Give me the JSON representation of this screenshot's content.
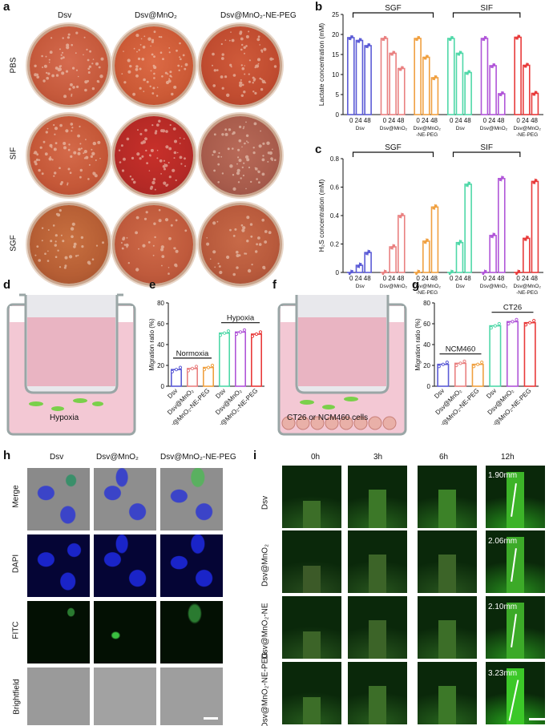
{
  "panels": {
    "a": "a",
    "b": "b",
    "c": "c",
    "d": "d",
    "e": "e",
    "f": "f",
    "g": "g",
    "h": "h",
    "i": "i"
  },
  "panel_a": {
    "col_headers": [
      "Dsv",
      "Dsv@MnO₂",
      "Dsv@MnO₂-NE-PEG"
    ],
    "row_headers": [
      "PBS",
      "SIF",
      "SGF"
    ]
  },
  "panel_b": {
    "group_labels": [
      "SGF",
      "SIF"
    ],
    "ylabel": "Lactate concentration (mM)",
    "tick_labels": [
      "0 24 48",
      "0 24 48",
      "0 24 48",
      "0 24 48",
      "0 24 48",
      "0 24 48"
    ],
    "xnames": [
      "Dsv",
      "Dsv@MnO₂",
      "Dsv@MnO₂\n-NE-PEG",
      "Dsv",
      "Dsv@MnO₂",
      "Dsv@MnO₂\n-NE-PEG"
    ]
  },
  "panel_c": {
    "group_labels": [
      "SGF",
      "SIF"
    ],
    "ylabel": "H₂S concentration (mM)"
  },
  "panel_d": {
    "label": "Hypoxia"
  },
  "panel_e": {
    "ylabel": "Migration ratio (%)",
    "groups": [
      "Normoxia",
      "Hypoxia"
    ],
    "xnames": [
      "Dsv",
      "Dsv@MnO₂",
      "Dsv@MnO₂-NE-PEG",
      "Dsv",
      "Dsv@MnO₂",
      "Dsv@MnO₂-NE-PEG"
    ]
  },
  "panel_f": {
    "label": "CT26 or NCM460 cells"
  },
  "panel_g": {
    "ylabel": "Migration ratio (%)",
    "groups": [
      "NCM460",
      "CT26"
    ],
    "xnames": [
      "Dsv",
      "Dsv@MnO₂",
      "Dsv@MnO₂-NE-PEG",
      "Dsv",
      "Dsv@MnO₂",
      "Dsv@MnO₂-NE-PEG"
    ]
  },
  "panel_h": {
    "col_headers": [
      "Dsv",
      "Dsv@MnO₂",
      "Dsv@MnO₂-NE-PEG"
    ],
    "row_headers": [
      "Merge",
      "DAPI",
      "FITC",
      "Brightfield"
    ]
  },
  "panel_i": {
    "col_headers": [
      "0h",
      "3h",
      "6h",
      "12h"
    ],
    "row_headers": [
      "Dsv",
      "Dsv@MnO₂",
      "Dsv@MnO₂-NE",
      "Dsv@MnO₂-NE-PEG"
    ],
    "distances": [
      "1.90mm",
      "2.06mm",
      "2.10mm",
      "3.23mm"
    ]
  },
  "colors": {
    "Dsv": "#5b5bd6",
    "DsvMnO2": "#e98080",
    "NEPEG": "#f0a040",
    "Dsv_sif": "#4fd8a8",
    "MnO2_sif": "#b055d8",
    "NEPEG_sif": "#e83a3a"
  },
  "chart_data": [
    {
      "type": "bar",
      "panel": "b",
      "ylabel": "Lactate concentration (mM)",
      "ylim": [
        0,
        25
      ],
      "groups": [
        "SGF",
        "SIF"
      ],
      "categories": [
        "0",
        "24",
        "48"
      ],
      "series": [
        {
          "name": "Dsv",
          "group": "SGF",
          "values": [
            19.2,
            18.5,
            17.2
          ]
        },
        {
          "name": "Dsv@MnO₂",
          "group": "SGF",
          "values": [
            19.0,
            15.3,
            11.5
          ]
        },
        {
          "name": "Dsv@MnO₂-NE-PEG",
          "group": "SGF",
          "values": [
            19.0,
            14.3,
            9.2
          ]
        },
        {
          "name": "Dsv",
          "group": "SIF",
          "values": [
            19.0,
            15.3,
            10.5
          ]
        },
        {
          "name": "Dsv@MnO₂",
          "group": "SIF",
          "values": [
            19.0,
            12.2,
            5.2
          ]
        },
        {
          "name": "Dsv@MnO₂-NE-PEG",
          "group": "SIF",
          "values": [
            19.3,
            12.3,
            5.3
          ]
        }
      ]
    },
    {
      "type": "bar",
      "panel": "c",
      "ylabel": "H₂S concentration (mM)",
      "ylim": [
        0,
        0.8
      ],
      "groups": [
        "SGF",
        "SIF"
      ],
      "categories": [
        "0",
        "24",
        "48"
      ],
      "series": [
        {
          "name": "Dsv",
          "group": "SGF",
          "values": [
            0,
            0.05,
            0.14
          ]
        },
        {
          "name": "Dsv@MnO₂",
          "group": "SGF",
          "values": [
            0,
            0.18,
            0.4
          ]
        },
        {
          "name": "Dsv@MnO₂-NE-PEG",
          "group": "SGF",
          "values": [
            0,
            0.22,
            0.46
          ]
        },
        {
          "name": "Dsv",
          "group": "SIF",
          "values": [
            0,
            0.21,
            0.62
          ]
        },
        {
          "name": "Dsv@MnO₂",
          "group": "SIF",
          "values": [
            0,
            0.26,
            0.66
          ]
        },
        {
          "name": "Dsv@MnO₂-NE-PEG",
          "group": "SIF",
          "values": [
            0,
            0.24,
            0.64
          ]
        }
      ]
    },
    {
      "type": "bar",
      "panel": "e",
      "ylabel": "Migration ratio (%)",
      "ylim": [
        0,
        80
      ],
      "yticks": [
        0,
        20,
        40,
        60,
        80
      ],
      "groups": [
        "Normoxia",
        "Hypoxia"
      ],
      "values": [
        16,
        17,
        18,
        51,
        52,
        50
      ]
    },
    {
      "type": "bar",
      "panel": "g",
      "ylabel": "Migration ratio (%)",
      "ylim": [
        0,
        80
      ],
      "yticks": [
        0,
        20,
        40,
        60,
        80
      ],
      "groups": [
        "NCM460",
        "CT26"
      ],
      "values": [
        21,
        22,
        21,
        58,
        62,
        61
      ]
    }
  ]
}
